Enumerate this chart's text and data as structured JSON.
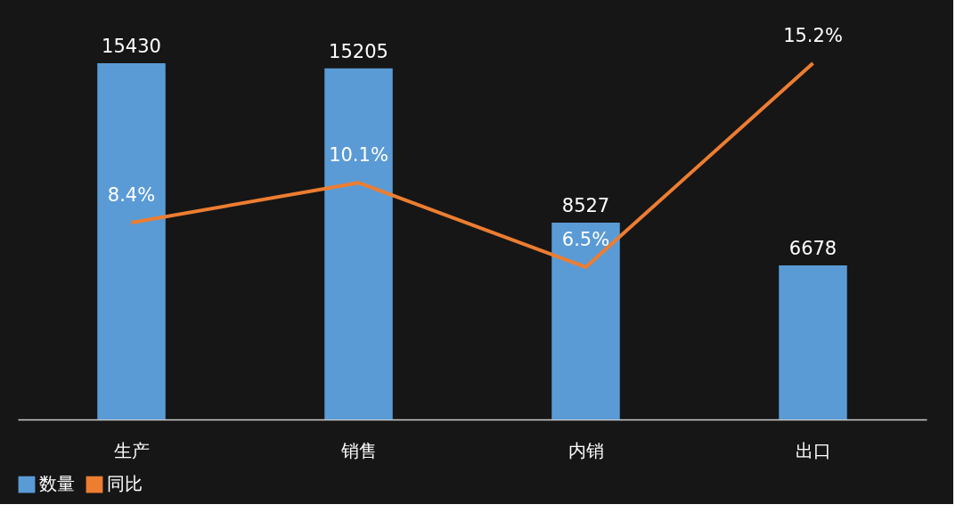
{
  "chart_data": {
    "type": "bar",
    "categories": [
      "生产",
      "销售",
      "内销",
      "出口"
    ],
    "series": [
      {
        "name": "数量",
        "color": "#5b9bd5",
        "values": [
          15430,
          15205,
          8527,
          6678
        ],
        "value_labels": [
          "15430",
          "15205",
          "8527",
          "6678"
        ]
      },
      {
        "name": "同比",
        "type": "line",
        "axis": "y2",
        "color": "#ed7d31",
        "values": [
          8.4,
          10.1,
          6.5,
          15.2
        ],
        "value_labels": [
          "8.4%",
          "10.1%",
          "6.5%",
          "15.2%"
        ]
      }
    ],
    "legend": "bottom",
    "tick_labels": "x",
    "marker": "none",
    "line_style": "solid"
  }
}
